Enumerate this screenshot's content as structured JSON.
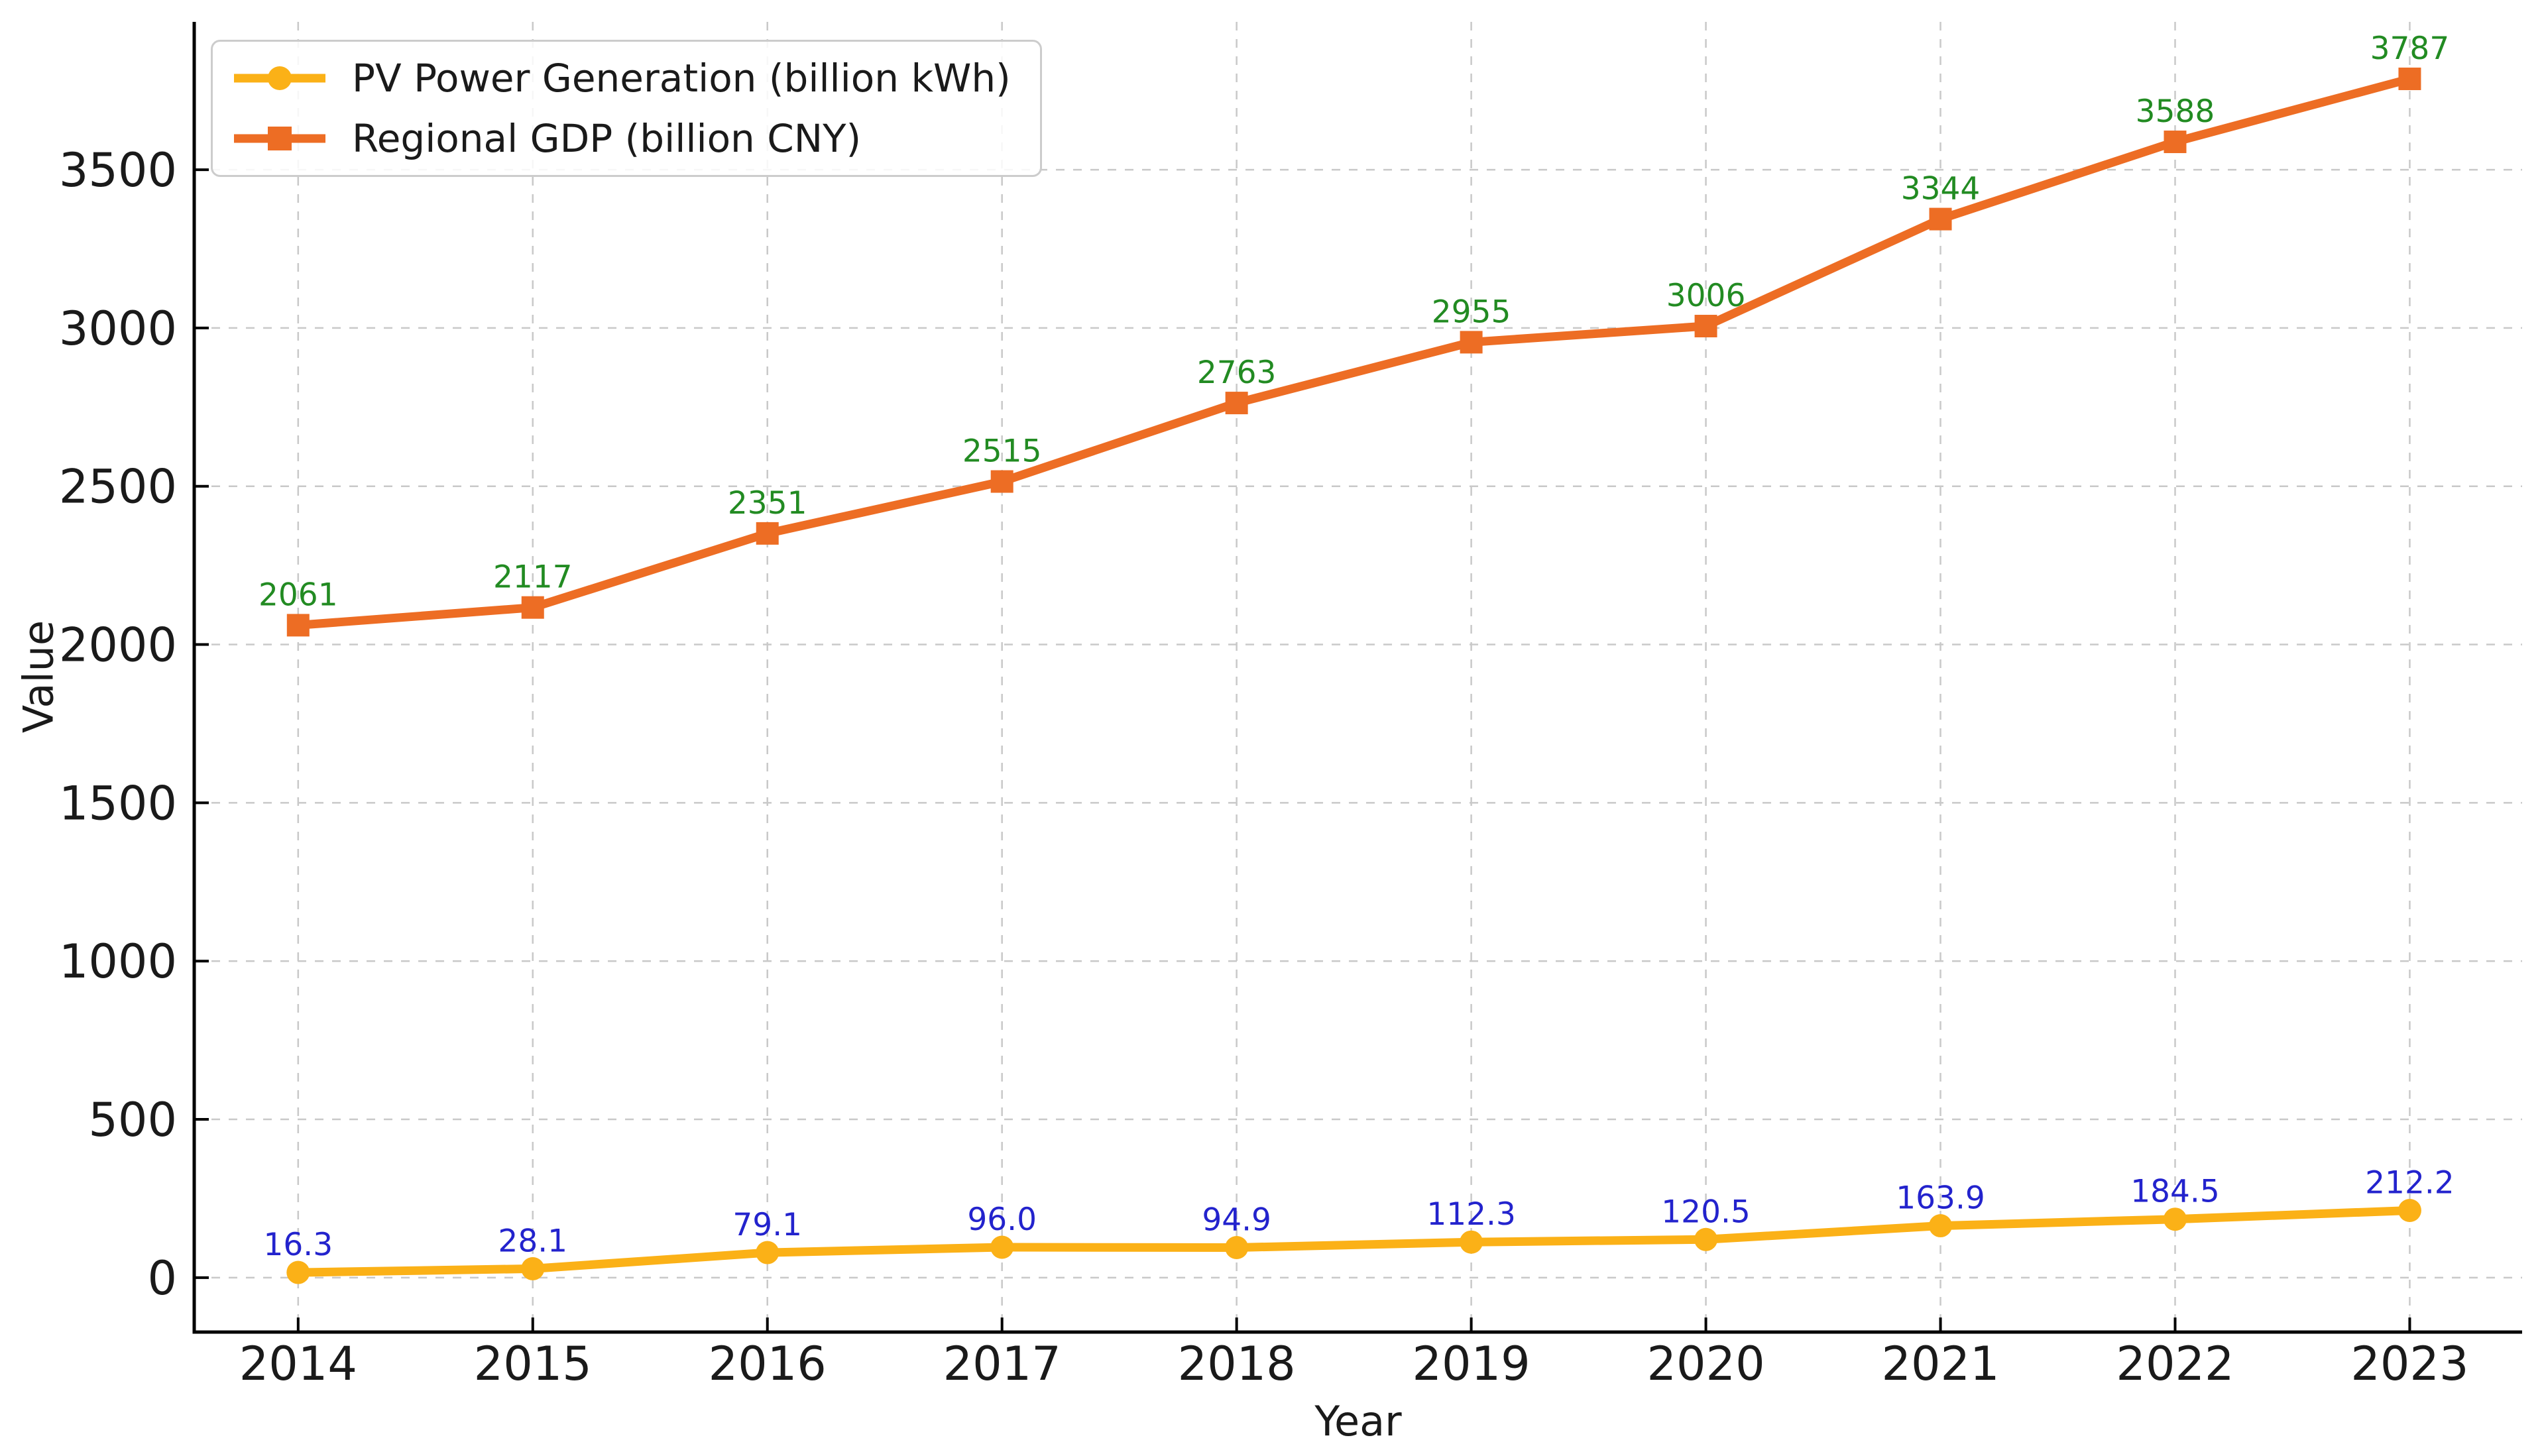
{
  "chart_data": {
    "type": "line",
    "xlabel": "Year",
    "ylabel": "Value",
    "x": [
      2014,
      2015,
      2016,
      2017,
      2018,
      2019,
      2020,
      2021,
      2022,
      2023
    ],
    "series": [
      {
        "name": "PV Power Generation (billion kWh)",
        "values": [
          16.3,
          28.1,
          79.1,
          96.0,
          94.9,
          112.3,
          120.5,
          163.9,
          184.5,
          212.2
        ],
        "labels": [
          "16.3",
          "28.1",
          "79.1",
          "96.0",
          "94.9",
          "112.3",
          "120.5",
          "163.9",
          "184.5",
          "212.2"
        ],
        "color": "#FBB117",
        "marker": "circle",
        "label_color": "#2323CD"
      },
      {
        "name": "Regional GDP (billion CNY)",
        "values": [
          2061,
          2117,
          2351,
          2515,
          2763,
          2955,
          3006,
          3344,
          3588,
          3787
        ],
        "labels": [
          "2061",
          "2117",
          "2351",
          "2515",
          "2763",
          "2955",
          "3006",
          "3344",
          "3588",
          "3787"
        ],
        "color": "#ED6D24",
        "marker": "square",
        "label_color": "#228B22"
      }
    ],
    "yticks": [
      0,
      500,
      1000,
      1500,
      2000,
      2500,
      3000,
      3500
    ],
    "ylim": [
      -172,
      3967
    ],
    "xlim": [
      2013.557,
      2023.479
    ],
    "grid": true,
    "grid_style": "dashed",
    "grid_color": "#c9c9c9",
    "axis_color": "#000000",
    "tick_label_color": "#1a1a1a",
    "legend_position": "upper left"
  }
}
